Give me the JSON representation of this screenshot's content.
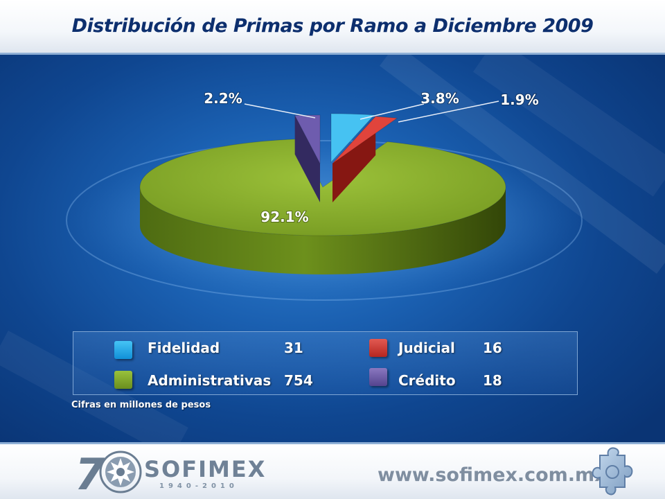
{
  "title": "Distribución de Primas por Ramo a Diciembre 2009",
  "chart_data": {
    "type": "pie",
    "title": "Distribución de Primas por Ramo a Diciembre 2009",
    "slices": [
      {
        "label": "Fidelidad",
        "value": 31,
        "percent_label": "3.8%",
        "color": "#1aa8e8"
      },
      {
        "label": "Judicial",
        "value": 16,
        "percent_label": "1.9%",
        "color": "#c8302a"
      },
      {
        "label": "Administrativas",
        "value": 754,
        "percent_label": "92.1%",
        "color": "#7fa52a"
      },
      {
        "label": "Crédito",
        "value": 18,
        "percent_label": "2.2%",
        "color": "#5a4a92"
      }
    ],
    "units": "Cifras en millones de pesos"
  },
  "legend": {
    "items": [
      {
        "label": "Fidelidad",
        "value": "31",
        "color": "#1aa8e8"
      },
      {
        "label": "Judicial",
        "value": "16",
        "color": "#c8302a"
      },
      {
        "label": "Administrativas",
        "value": "754",
        "color": "#7fa52a"
      },
      {
        "label": "Crédito",
        "value": "18",
        "color": "#5a4a92"
      }
    ]
  },
  "note": "Cifras en millones de pesos",
  "footer": {
    "logo_number": "70",
    "brand": "SOFIMEX",
    "years": "1940-2010",
    "url": "www.sofimex.com.mx"
  },
  "colors": {
    "title": "#0d2f6e",
    "background": "#1a5fb0"
  },
  "icons": [
    "sofimex-emblem-icon",
    "puzzle-icon"
  ]
}
